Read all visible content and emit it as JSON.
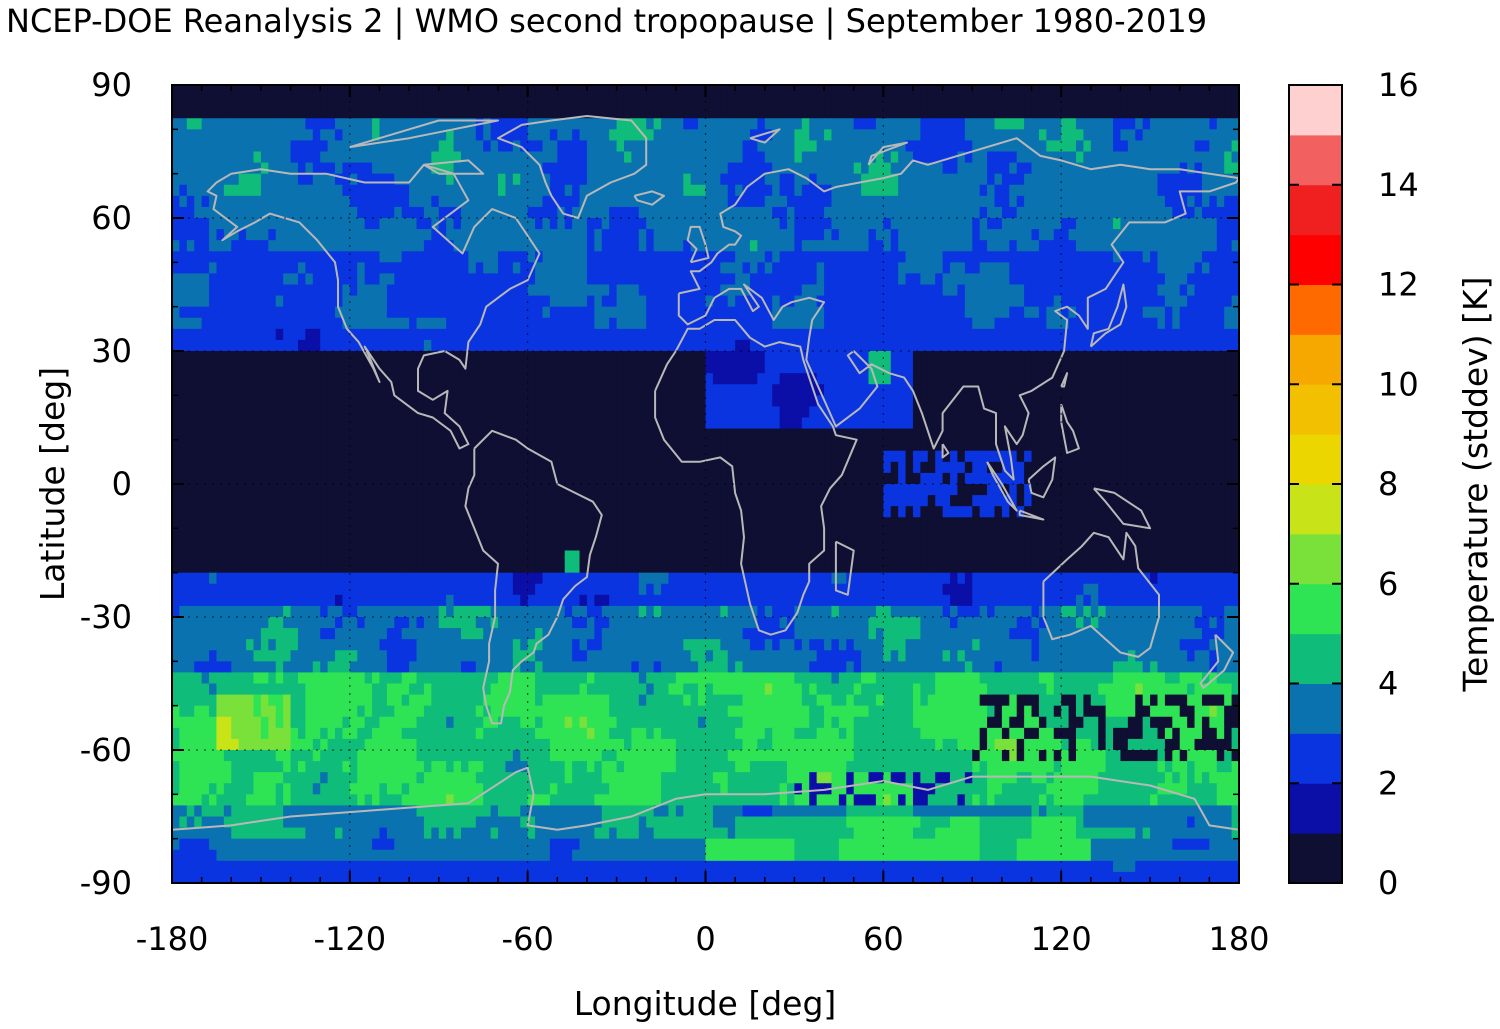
{
  "chart_data": {
    "type": "heatmap",
    "title": "NCEP-DOE Reanalysis 2 | WMO second tropopause | September 1980-2019",
    "xlabel": "Longitude [deg]",
    "ylabel": "Latitude [deg]",
    "xlim": [
      -180,
      180
    ],
    "ylim": [
      -90,
      90
    ],
    "x_ticks": [
      -180,
      -120,
      -60,
      0,
      60,
      120,
      180
    ],
    "x_tick_labels": [
      "-180",
      "-120",
      "-60",
      "0",
      "60",
      "120",
      "180"
    ],
    "y_ticks": [
      90,
      60,
      30,
      0,
      -30,
      -60,
      -90
    ],
    "y_tick_labels": [
      "90",
      "60",
      "30",
      "0",
      "-30",
      "-60",
      "-90"
    ],
    "grid": true,
    "coastlines": true,
    "colorbar": {
      "label": "Temperature (stddev) [K]",
      "range": [
        0,
        16
      ],
      "ticks": [
        0,
        2,
        4,
        6,
        8,
        10,
        12,
        14,
        16
      ],
      "tick_labels": [
        "0",
        "2",
        "4",
        "6",
        "8",
        "10",
        "12",
        "14",
        "16"
      ],
      "levels": [
        0,
        1,
        2,
        3,
        4,
        5,
        6,
        7,
        8,
        9,
        10,
        11,
        12,
        13,
        14,
        15,
        16
      ],
      "colors": [
        "#0e0f33",
        "#0b0fa8",
        "#0a34e0",
        "#0b72b0",
        "#10bc7a",
        "#2fe454",
        "#7ae03a",
        "#c8e418",
        "#ecd600",
        "#f2c000",
        "#f7a800",
        "#ff6a00",
        "#ff0000",
        "#f02020",
        "#f26060",
        "#ffd0d0"
      ]
    },
    "field": {
      "description_bands": [
        {
          "lat": [
            60,
            90
          ],
          "typical_stddev": 3.5
        },
        {
          "lat": [
            30,
            60
          ],
          "typical_stddev": 3.0
        },
        {
          "lat": [
            -20,
            30
          ],
          "typical_stddev": 0.5
        },
        {
          "lat": [
            -45,
            -20
          ],
          "typical_stddev": 3.5
        },
        {
          "lat": [
            -75,
            -45
          ],
          "typical_stddev": 5.5
        },
        {
          "lat": [
            -90,
            -75
          ],
          "typical_stddev": 4.0
        }
      ]
    }
  }
}
